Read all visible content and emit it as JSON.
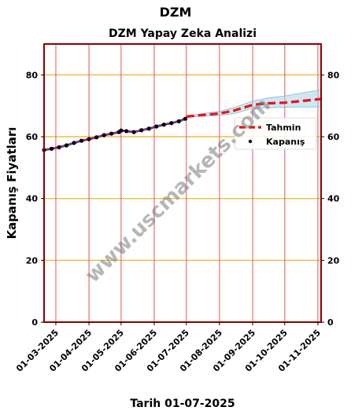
{
  "figure": {
    "suptitle": "DZM",
    "title": "DZM Yapay Zeka Analizi",
    "xlabel": "Tarih 01-07-2025",
    "watermark": "www.uscmarkets.com"
  },
  "chart_data": {
    "type": "line",
    "title": "DZM Yapay Zeka Analizi",
    "xlabel": "Tarih 01-07-2025",
    "ylabel": "Kapanış Fiyatları",
    "x_range": [
      "2025-02-18",
      "2025-11-04"
    ],
    "ylim": [
      0,
      90
    ],
    "y_ticks": [
      0,
      20,
      40,
      60,
      80
    ],
    "x_ticks": [
      "01-03-2025",
      "01-04-2025",
      "01-05-2025",
      "01-06-2025",
      "01-07-2025",
      "01-08-2025",
      "01-09-2025",
      "01-10-2025",
      "01-11-2025"
    ],
    "x_tick_dates": [
      "2025-03-01",
      "2025-04-01",
      "2025-05-01",
      "2025-06-01",
      "2025-07-01",
      "2025-08-01",
      "2025-09-01",
      "2025-10-01",
      "2025-11-01"
    ],
    "grid": {
      "horizontal_color": "#f5b942",
      "vertical_color": "#e05a5a"
    },
    "legend": {
      "placement": "center-right",
      "entries": [
        "Tahmin",
        "Kapanış"
      ]
    },
    "series": [
      {
        "name": "Kapanış",
        "style": "points",
        "color": "#000000",
        "x": [
          "2025-02-18",
          "2025-02-25",
          "2025-03-04",
          "2025-03-11",
          "2025-03-18",
          "2025-03-25",
          "2025-04-01",
          "2025-04-08",
          "2025-04-15",
          "2025-04-22",
          "2025-04-29",
          "2025-05-01",
          "2025-05-06",
          "2025-05-13",
          "2025-05-20",
          "2025-05-27",
          "2025-06-03",
          "2025-06-10",
          "2025-06-17",
          "2025-06-24",
          "2025-06-30"
        ],
        "y": [
          55.7,
          56.1,
          56.6,
          57.2,
          58.0,
          58.7,
          59.2,
          59.8,
          60.5,
          61.0,
          61.5,
          62.0,
          61.8,
          61.5,
          62.1,
          62.6,
          63.3,
          63.9,
          64.4,
          65.0,
          65.8
        ]
      },
      {
        "name": "Tahmin",
        "style": "dashed",
        "color": "#ee1111",
        "x": [
          "2025-07-01",
          "2025-07-15",
          "2025-08-01",
          "2025-08-15",
          "2025-09-01",
          "2025-09-15",
          "2025-10-01",
          "2025-10-15",
          "2025-11-04"
        ],
        "y": [
          66.5,
          67.0,
          67.5,
          68.5,
          70.3,
          70.8,
          71.0,
          71.5,
          72.2
        ],
        "band_upper": [
          66.8,
          67.4,
          68.2,
          69.5,
          71.5,
          72.5,
          73.2,
          74.0,
          75.2
        ],
        "band_lower": [
          66.2,
          66.6,
          66.9,
          67.5,
          69.2,
          69.4,
          69.5,
          69.6,
          69.6
        ],
        "band_color": "#a8d4e8"
      }
    ]
  }
}
